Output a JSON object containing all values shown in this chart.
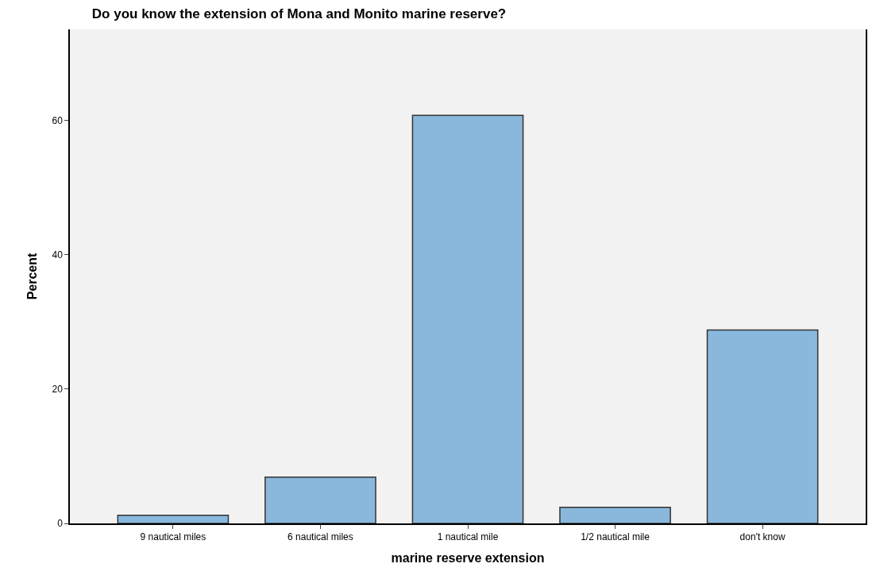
{
  "chart_data": {
    "type": "bar",
    "title": "Do you know the extension of Mona and Monito marine reserve?",
    "xlabel": "marine reserve extension",
    "ylabel": "Percent",
    "categories": [
      "9 nautical miles",
      "6 nautical miles",
      "1 nautical mile",
      "1/2 nautical mile",
      "don't know"
    ],
    "values": [
      1.2,
      6.9,
      60.8,
      2.4,
      28.8
    ],
    "color": "#8ab8dc",
    "ylim": [
      0,
      73.6
    ],
    "yticks": [
      0,
      20,
      40,
      60
    ],
    "grid": false
  }
}
